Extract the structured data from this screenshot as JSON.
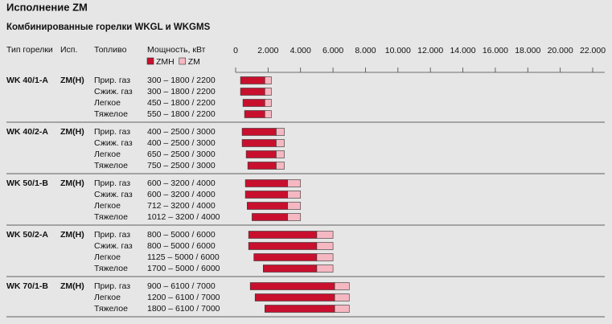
{
  "chart_data": {
    "type": "range_bar",
    "title": "Исполнение ZM",
    "subtitle": "Комбинированные горелки WKGL и WKGMS",
    "columns": [
      "Тип горелки",
      "Исп.",
      "Топливо",
      "Мощность, кВт"
    ],
    "series": [
      {
        "name": "ZMH",
        "color": "#c8102e"
      },
      {
        "name": "ZM",
        "color": "#f5b8c2"
      }
    ],
    "xlim": [
      0,
      22000
    ],
    "xticks": [
      0,
      {
        "value": 2000,
        "label": "2.000"
      },
      {
        "value": 4000,
        "label": "4.000"
      },
      {
        "value": 6000,
        "label": "6.000"
      },
      {
        "value": 8000,
        "label": "8.000"
      },
      {
        "value": 10000,
        "label": "10.000"
      },
      {
        "value": 12000,
        "label": "12.000"
      },
      {
        "value": 14000,
        "label": "14.000"
      },
      {
        "value": 16000,
        "label": "16.000"
      },
      {
        "value": 18000,
        "label": "18.000"
      },
      {
        "value": 20000,
        "label": "20.000"
      },
      {
        "value": 22000,
        "label": "22.000"
      }
    ],
    "groups": [
      {
        "model": "WK 40/1-A",
        "version": "ZM(H)",
        "rows": [
          {
            "fuel": "Прир. газ",
            "label": "300 – 1800 / 2200",
            "values": [
              300,
              1800,
              2200
            ]
          },
          {
            "fuel": "Сжиж. газ",
            "label": "300 – 1800 / 2200",
            "values": [
              300,
              1800,
              2200
            ]
          },
          {
            "fuel": "Легкое",
            "label": "450 – 1800 / 2200",
            "values": [
              450,
              1800,
              2200
            ]
          },
          {
            "fuel": "Тяжелое",
            "label": "550 – 1800 / 2200",
            "values": [
              550,
              1800,
              2200
            ]
          }
        ]
      },
      {
        "model": "WK 40/2-A",
        "version": "ZM(H)",
        "rows": [
          {
            "fuel": "Прир. газ",
            "label": "400 – 2500 / 3000",
            "values": [
              400,
              2500,
              3000
            ]
          },
          {
            "fuel": "Сжиж. газ",
            "label": "400 – 2500 / 3000",
            "values": [
              400,
              2500,
              3000
            ]
          },
          {
            "fuel": "Легкое",
            "label": "650 – 2500 / 3000",
            "values": [
              650,
              2500,
              3000
            ]
          },
          {
            "fuel": "Тяжелое",
            "label": "750 – 2500 / 3000",
            "values": [
              750,
              2500,
              3000
            ]
          }
        ]
      },
      {
        "model": "WK 50/1-B",
        "version": "ZM(H)",
        "rows": [
          {
            "fuel": "Прир. газ",
            "label": "600 – 3200 / 4000",
            "values": [
              600,
              3200,
              4000
            ]
          },
          {
            "fuel": "Сжиж. газ",
            "label": "600 – 3200 / 4000",
            "values": [
              600,
              3200,
              4000
            ]
          },
          {
            "fuel": "Легкое",
            "label": "712 – 3200 / 4000",
            "values": [
              712,
              3200,
              4000
            ]
          },
          {
            "fuel": "Тяжелое",
            "label": "1012 – 3200 / 4000",
            "values": [
              1012,
              3200,
              4000
            ]
          }
        ]
      },
      {
        "model": "WK 50/2-A",
        "version": "ZM(H)",
        "rows": [
          {
            "fuel": "Прир. газ",
            "label": "800 – 5000 / 6000",
            "values": [
              800,
              5000,
              6000
            ]
          },
          {
            "fuel": "Сжиж. газ",
            "label": "800 – 5000 / 6000",
            "values": [
              800,
              5000,
              6000
            ]
          },
          {
            "fuel": "Легкое",
            "label": "1125 – 5000 / 6000",
            "values": [
              1125,
              5000,
              6000
            ]
          },
          {
            "fuel": "Тяжелое",
            "label": "1700 – 5000 / 6000",
            "values": [
              1700,
              5000,
              6000
            ]
          }
        ]
      },
      {
        "model": "WK 70/1-B",
        "version": "ZM(H)",
        "rows": [
          {
            "fuel": "Прир. газ",
            "label": "900 – 6100 / 7000",
            "values": [
              900,
              6100,
              7000
            ]
          },
          {
            "fuel": "Легкое",
            "label": "1200 – 6100 / 7000",
            "values": [
              1200,
              6100,
              7000
            ]
          },
          {
            "fuel": "Тяжелое",
            "label": "1800 – 6100 / 7000",
            "values": [
              1800,
              6100,
              7000
            ]
          }
        ]
      }
    ]
  }
}
